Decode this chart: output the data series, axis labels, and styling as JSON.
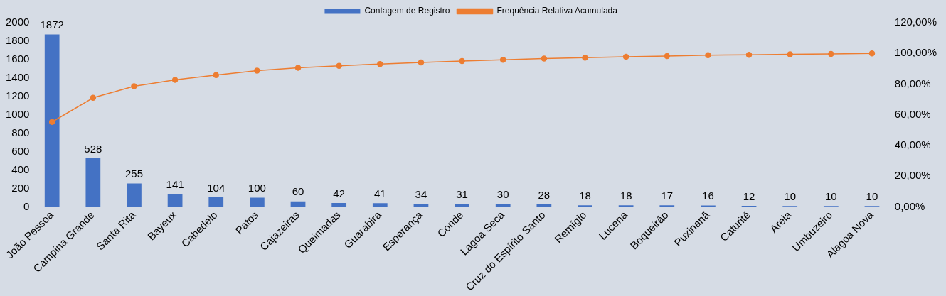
{
  "chart_data": {
    "type": "bar",
    "categories": [
      "João Pessoa",
      "Campina Grande",
      "Santa Rita",
      "Bayeux",
      "Cabedelo",
      "Patos",
      "Cajazeiras",
      "Queimadas",
      "Guarabira",
      "Esperança",
      "Conde",
      "Lagoa Seca",
      "Cruz do Espírito Santo",
      "Remígio",
      "Lucena",
      "Boqueirão",
      "Puxinanã",
      "Caturité",
      "Areia",
      "Umbuzeiro",
      "Alagoa Nova"
    ],
    "series": [
      {
        "name": "Contagem de Registro",
        "color": "#4472c4",
        "values": [
          1872,
          528,
          255,
          141,
          104,
          100,
          60,
          42,
          41,
          34,
          31,
          30,
          28,
          18,
          18,
          17,
          16,
          12,
          10,
          10,
          10
        ],
        "value_labels": [
          "1872",
          "528",
          "255",
          "141",
          "104",
          "100",
          "60",
          "42",
          "41",
          "34",
          "31",
          "30",
          "28",
          "18",
          "18",
          "17",
          "16",
          "12",
          "10",
          "10",
          "10"
        ]
      },
      {
        "name": "Frequência Relativa Acumulada",
        "type": "line",
        "axis": "y2",
        "color": "#ed7d31",
        "values": [
          55.4,
          71.1,
          78.6,
          82.8,
          85.9,
          88.8,
          90.6,
          91.9,
          93.1,
          94.1,
          95.0,
          95.9,
          96.7,
          97.2,
          97.8,
          98.3,
          98.8,
          99.1,
          99.4,
          99.7,
          100.0
        ]
      }
    ],
    "ylim": [
      0,
      2000
    ],
    "yticks": [
      0,
      200,
      400,
      600,
      800,
      1000,
      1200,
      1400,
      1600,
      1800,
      2000
    ],
    "y2lim": [
      0,
      120
    ],
    "y2ticks": [
      {
        "value": 0,
        "label": "0,00%"
      },
      {
        "value": 20,
        "label": "20,00%"
      },
      {
        "value": 40,
        "label": "40,00%"
      },
      {
        "value": 60,
        "label": "60,00%"
      },
      {
        "value": 80,
        "label": "80,00%"
      },
      {
        "value": 100,
        "label": "100,00%"
      },
      {
        "value": 120,
        "label": "120,00%"
      }
    ],
    "grid": false,
    "legend": "top",
    "marker": "circle"
  }
}
